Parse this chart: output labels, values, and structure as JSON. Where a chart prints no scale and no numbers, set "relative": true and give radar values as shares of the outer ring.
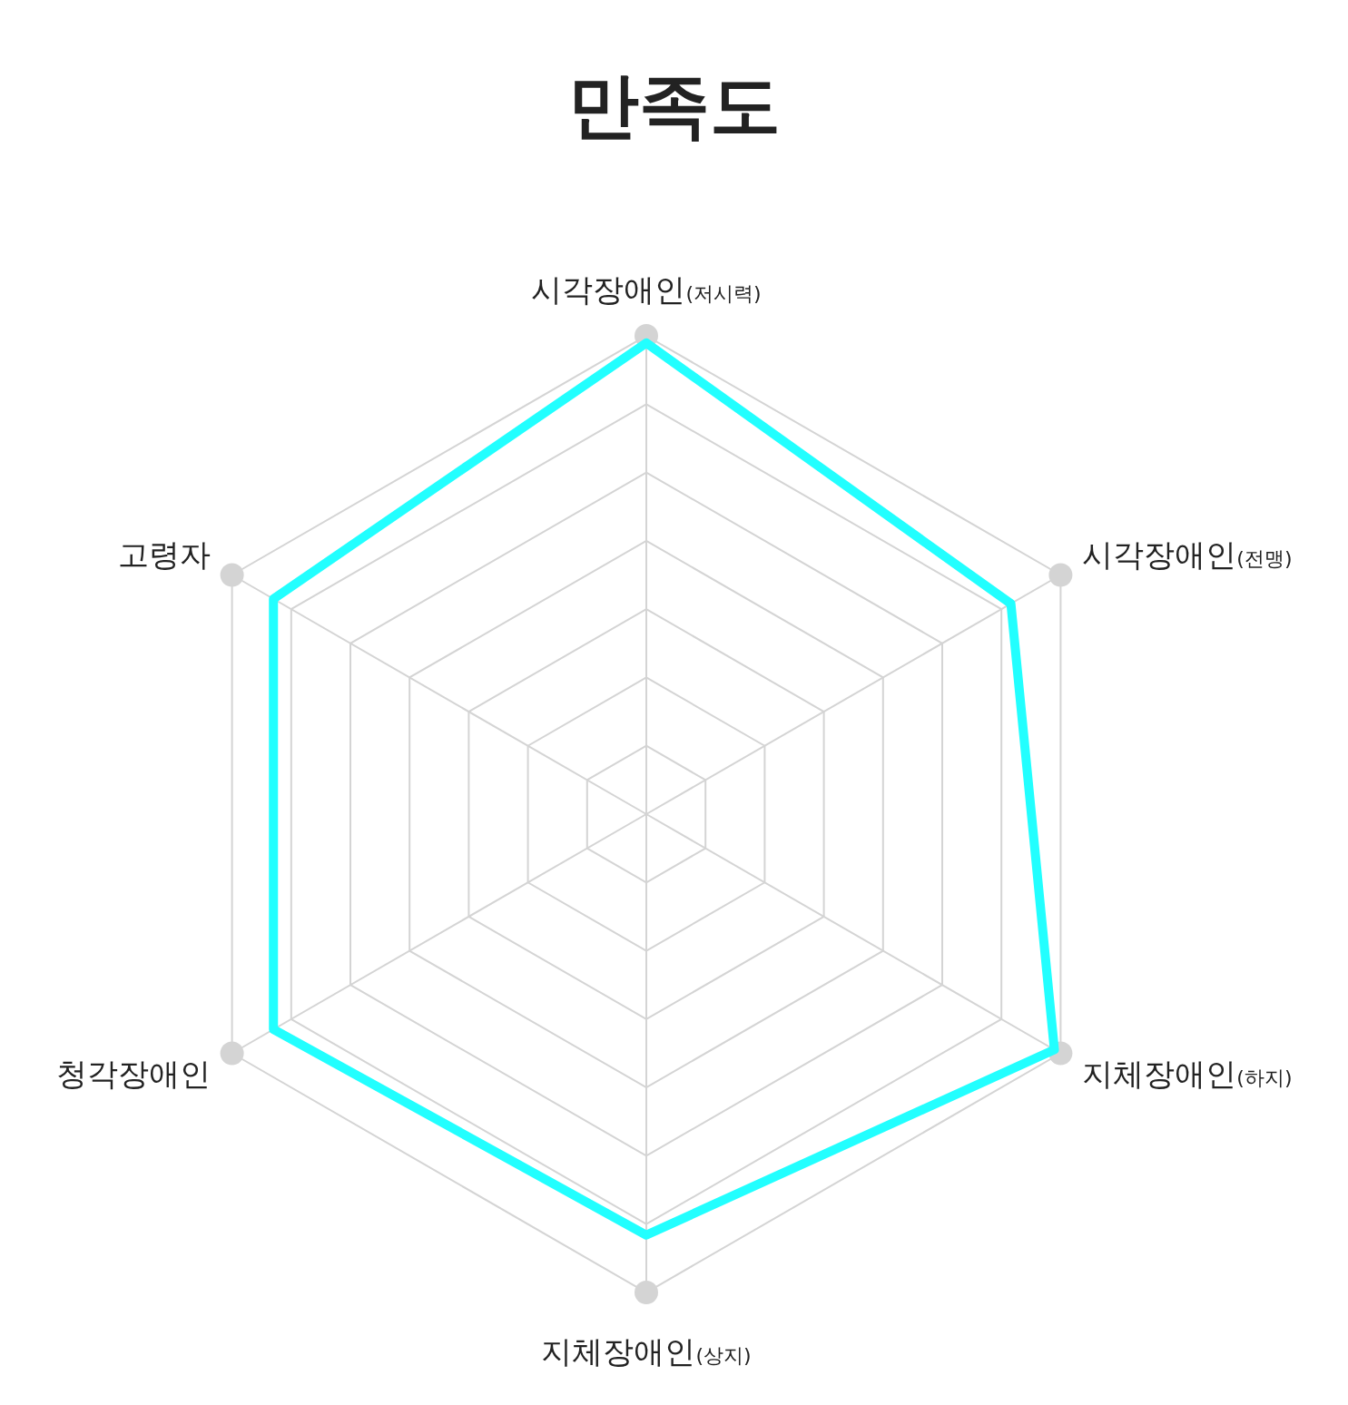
{
  "chart_data": {
    "type": "radar",
    "title": "만족도",
    "relative": true,
    "grid": true,
    "marker": "none",
    "line_style": "solid",
    "categories": [
      "시각장애인(저시력)",
      "시각장애인(전맹)",
      "지체장애인(하지)",
      "지체장애인(상지)",
      "청각장애인",
      "고령자"
    ],
    "series": [
      {
        "color": "#22ffff",
        "values": [
          0.985,
          0.88,
          0.985,
          0.88,
          0.9,
          0.9
        ]
      }
    ]
  }
}
